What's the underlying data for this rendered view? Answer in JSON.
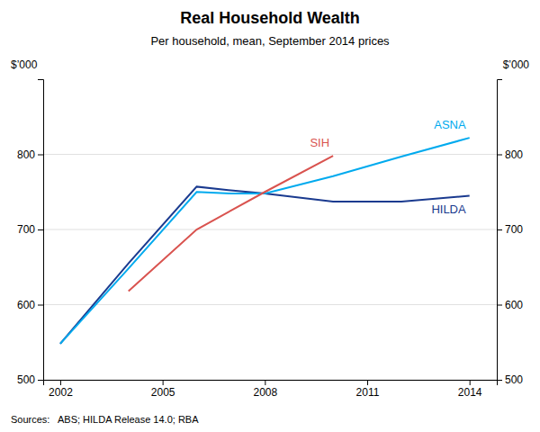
{
  "chart_data": {
    "type": "line",
    "title": "Real Household Wealth",
    "subtitle": "Per household, mean, September 2014 prices",
    "ylabel": "$’000",
    "y2label": "$’000",
    "annotations": [
      "Sources:   ABS; HILDA Release 14.0; RBA"
    ],
    "series": [
      {
        "name": "HILDA",
        "color": "#1a3a8f",
        "x": [
          2002,
          2004,
          2006,
          2007,
          2008,
          2010,
          2012,
          2014
        ],
        "values": [
          548,
          655,
          757,
          752,
          748,
          737,
          737,
          745
        ]
      },
      {
        "name": "ASNA",
        "color": "#00aaee",
        "x": [
          2002,
          2004,
          2006,
          2007,
          2008,
          2010,
          2012,
          2014
        ],
        "values": [
          548,
          648,
          750,
          748,
          748,
          771,
          797,
          822
        ]
      },
      {
        "name": "SIH",
        "color": "#d9534f",
        "x": [
          2004,
          2006,
          2008,
          2010
        ],
        "values": [
          618,
          700,
          750,
          798
        ]
      }
    ],
    "xlim": [
      2001.5,
      2014.8
    ],
    "xticks": [
      2002,
      2005,
      2008,
      2011,
      2014
    ],
    "ylim": [
      500,
      900
    ],
    "yticks": [
      500,
      600,
      700,
      800
    ],
    "y2lim": [
      500,
      900
    ],
    "y2ticks": [
      500,
      600,
      700,
      800
    ],
    "grid": true
  }
}
